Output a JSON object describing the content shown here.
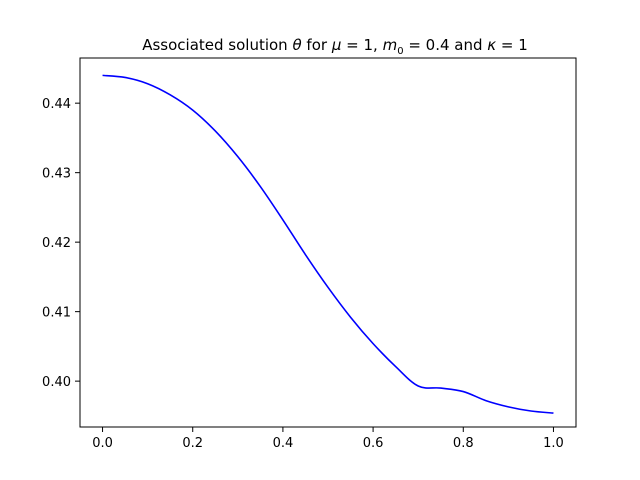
{
  "chart_data": {
    "type": "line",
    "title_parts": {
      "lead": "Associated solution ",
      "theta": "θ",
      "mid1": " for ",
      "mu": "μ",
      "mid2": " = 1, ",
      "m": "m",
      "m_sub": "0",
      "mid3": " = 0.4 and ",
      "kappa": "κ",
      "tail": " = 1"
    },
    "xlabel": "",
    "ylabel": "",
    "xlim": [
      -0.05,
      1.05
    ],
    "ylim": [
      0.3934,
      0.4465
    ],
    "xticks": [
      0.0,
      0.2,
      0.4,
      0.6,
      0.8,
      1.0
    ],
    "xtick_labels": [
      "0.0",
      "0.2",
      "0.4",
      "0.6",
      "0.8",
      "1.0"
    ],
    "yticks": [
      0.4,
      0.41,
      0.42,
      0.43,
      0.44
    ],
    "ytick_labels": [
      "0.40",
      "0.41",
      "0.42",
      "0.43",
      "0.44"
    ],
    "grid": false,
    "series": [
      {
        "color": "#0000ff",
        "x": [
          0.0,
          0.05,
          0.1,
          0.15,
          0.2,
          0.25,
          0.3,
          0.35,
          0.4,
          0.45,
          0.5,
          0.55,
          0.6,
          0.65,
          0.7,
          0.75,
          0.8,
          0.85,
          0.9,
          0.95,
          1.0
        ],
        "y": [
          0.444,
          0.4437,
          0.4428,
          0.4412,
          0.439,
          0.436,
          0.4323,
          0.428,
          0.4232,
          0.4182,
          0.4135,
          0.4092,
          0.4054,
          0.4021,
          0.3993,
          0.399,
          0.3985,
          0.3972,
          0.3963,
          0.3957,
          0.3954
        ]
      }
    ]
  }
}
